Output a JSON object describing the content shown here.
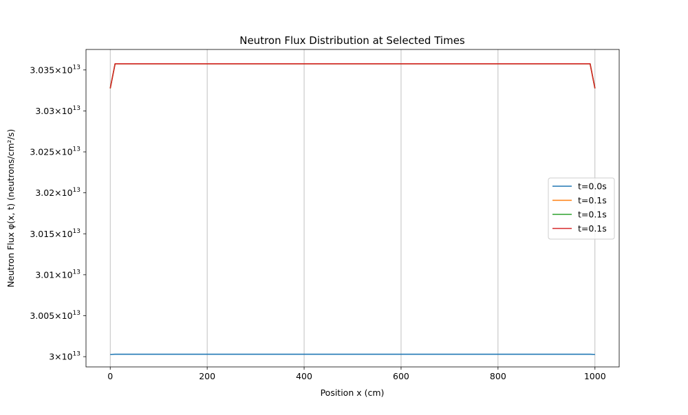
{
  "chart_data": {
    "type": "line",
    "title": "Neutron Flux Distribution at Selected Times",
    "xlabel": "Position x (cm)",
    "ylabel": "Neutron Flux φ(x, t) (neutrons/cm²/s)",
    "xlim": [
      -50,
      1050
    ],
    "ylim": [
      29987500000000,
      30375000000000
    ],
    "x_ticks": [
      0,
      200,
      400,
      600,
      800,
      1000
    ],
    "y_ticks": [
      {
        "value": 30000000000000,
        "mantissa": "3",
        "exponent": "13"
      },
      {
        "value": 30050000000000,
        "mantissa": "3.005",
        "exponent": "13"
      },
      {
        "value": 30100000000000,
        "mantissa": "3.01",
        "exponent": "13"
      },
      {
        "value": 30150000000000,
        "mantissa": "3.015",
        "exponent": "13"
      },
      {
        "value": 30200000000000,
        "mantissa": "3.02",
        "exponent": "13"
      },
      {
        "value": 30250000000000,
        "mantissa": "3.025",
        "exponent": "13"
      },
      {
        "value": 30300000000000,
        "mantissa": "3.03",
        "exponent": "13"
      },
      {
        "value": 30350000000000,
        "mantissa": "3.035",
        "exponent": "13"
      }
    ],
    "y_tick_multiplier": "×10",
    "grid": "x-major",
    "legend_position": "center-right",
    "series": [
      {
        "name": "t=0.0s",
        "color": "#1f77b4",
        "x": [
          0,
          10,
          990,
          1000
        ],
        "y": [
          30002700000000,
          30003000000000,
          30003000000000,
          30002700000000
        ]
      },
      {
        "name": "t=0.1s",
        "color": "#ff7f0e",
        "x": [
          0,
          10,
          990,
          1000
        ],
        "y": [
          30327500000000,
          30357500000000,
          30357500000000,
          30327500000000
        ]
      },
      {
        "name": "t=0.1s",
        "color": "#2ca02c",
        "x": [
          0,
          10,
          990,
          1000
        ],
        "y": [
          30327500000000,
          30357500000000,
          30357500000000,
          30327500000000
        ]
      },
      {
        "name": "t=0.1s",
        "color": "#d62728",
        "x": [
          0,
          10,
          990,
          1000
        ],
        "y": [
          30327500000000,
          30357500000000,
          30357500000000,
          30327500000000
        ]
      }
    ]
  }
}
